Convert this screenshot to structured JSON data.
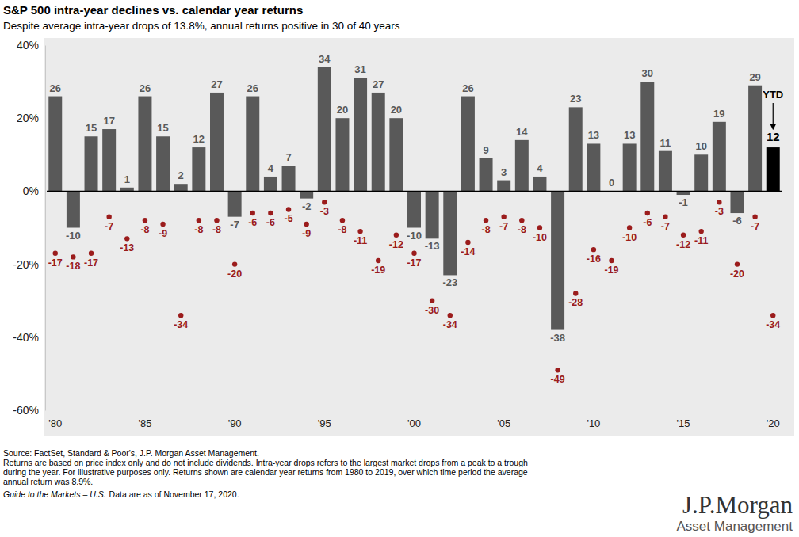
{
  "chart_data": {
    "type": "bar",
    "title": "S&P 500 intra-year declines vs. calendar year returns",
    "subtitle": "Despite average intra-year drops of 13.8%, annual returns positive in 30 of 40 years",
    "categories": [
      "'80",
      null,
      null,
      null,
      null,
      "'85",
      null,
      null,
      null,
      null,
      "'90",
      null,
      null,
      null,
      null,
      "'95",
      null,
      null,
      null,
      null,
      "'00",
      null,
      null,
      null,
      null,
      "'05",
      null,
      null,
      null,
      null,
      "'10",
      null,
      null,
      null,
      null,
      "'15",
      null,
      null,
      null,
      null,
      "'20"
    ],
    "series": [
      {
        "type": "bar",
        "values": [
          26,
          -10,
          15,
          17,
          1,
          26,
          15,
          2,
          12,
          27,
          -7,
          26,
          4,
          7,
          -2,
          34,
          20,
          31,
          27,
          20,
          -10,
          -13,
          -23,
          26,
          9,
          3,
          14,
          4,
          -38,
          23,
          13,
          0,
          13,
          30,
          11,
          -1,
          10,
          19,
          -6,
          29,
          12
        ],
        "colors": [
          "#595959",
          "#595959",
          "#595959",
          "#595959",
          "#595959",
          "#595959",
          "#595959",
          "#595959",
          "#595959",
          "#595959",
          "#595959",
          "#595959",
          "#595959",
          "#595959",
          "#595959",
          "#595959",
          "#595959",
          "#595959",
          "#595959",
          "#595959",
          "#595959",
          "#595959",
          "#595959",
          "#595959",
          "#595959",
          "#595959",
          "#595959",
          "#595959",
          "#595959",
          "#595959",
          "#595959",
          "#595959",
          "#595959",
          "#595959",
          "#595959",
          "#595959",
          "#595959",
          "#595959",
          "#595959",
          "#595959",
          "#000000"
        ]
      },
      {
        "type": "scatter",
        "marker": "circle",
        "color": "#9b1c1c",
        "values": [
          -17,
          -18,
          -17,
          -7,
          -13,
          -8,
          -9,
          -34,
          -8,
          -8,
          -20,
          -6,
          -6,
          -5,
          -9,
          -3,
          -8,
          -11,
          -19,
          -12,
          -17,
          -30,
          -34,
          -14,
          -8,
          -7,
          -8,
          -10,
          -49,
          -28,
          -16,
          -19,
          -10,
          -6,
          -7,
          -12,
          -11,
          -3,
          -20,
          -7,
          -34
        ]
      }
    ],
    "ylim": [
      -60,
      40
    ],
    "yticks": [
      {
        "value": 40,
        "label": "40%"
      },
      {
        "value": 20,
        "label": "20%"
      },
      {
        "value": 0,
        "label": "0%"
      },
      {
        "value": -20,
        "label": "-20%"
      },
      {
        "value": -40,
        "label": "-40%"
      },
      {
        "value": -60,
        "label": "-60%"
      }
    ],
    "grid": false,
    "data_labels": true,
    "annotation": "YTD",
    "notes": [
      "Source: FactSet, Standard & Poor's, J.P. Morgan Asset Management.",
      "Returns are based on price index only and do not include dividends. Intra-year drops refers to the largest market drops from a peak to a trough",
      "during the year. For illustrative purposes only. Returns shown are calendar year returns from 1980 to 2019, over which time period the average",
      "annual return was 8.9%."
    ],
    "footer": {
      "italic": "Guide to the Markets – U.S.",
      "text": "Data are as of November 17, 2020."
    },
    "logo": [
      "J.P.Morgan",
      "Asset Management"
    ]
  }
}
